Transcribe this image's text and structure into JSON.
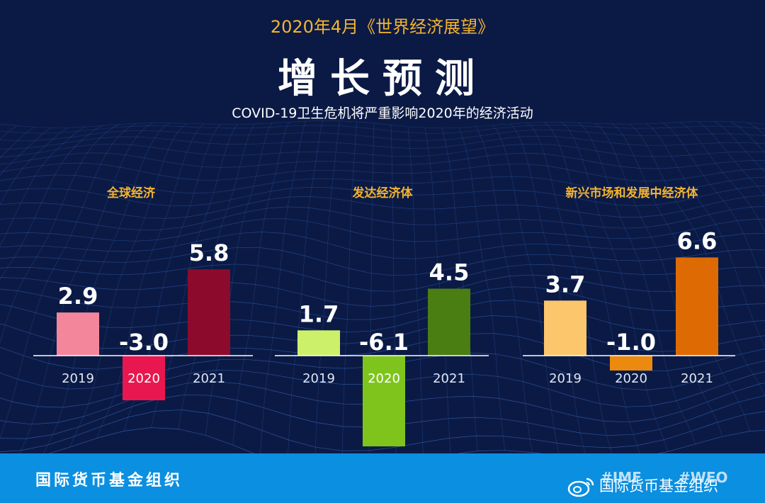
{
  "header": {
    "kicker": "2020年4月《世界经济展望》",
    "title": "增长预测",
    "subtitle": "COVID-19卫生危机将严重影响2020年的经济活动"
  },
  "colors": {
    "background": "#0b1a45",
    "title_yellow": "#f4b42f",
    "footer_blue": "#0b8fe0"
  },
  "chart_data": [
    {
      "type": "bar",
      "title": "全球经济",
      "categories": [
        "2019",
        "2020",
        "2021"
      ],
      "values": [
        2.9,
        -3.0,
        5.8
      ],
      "value_labels": [
        "2.9",
        "-3.0",
        "5.8"
      ],
      "colors": [
        "#f4869b",
        "#e8174f",
        "#8c0b2c"
      ],
      "highlight_category": "2020"
    },
    {
      "type": "bar",
      "title": "发达经济体",
      "categories": [
        "2019",
        "2020",
        "2021"
      ],
      "values": [
        1.7,
        -6.1,
        4.5
      ],
      "value_labels": [
        "1.7",
        "-6.1",
        "4.5"
      ],
      "colors": [
        "#cdf06a",
        "#7ec41d",
        "#4a7d12"
      ],
      "highlight_category": "2020"
    },
    {
      "type": "bar",
      "title": "新兴市场和发展中经济体",
      "categories": [
        "2019",
        "2020",
        "2021"
      ],
      "values": [
        3.7,
        -1.0,
        6.6
      ],
      "value_labels": [
        "3.7",
        "-1.0",
        "6.6"
      ],
      "colors": [
        "#fbc66c",
        "#eb8a0e",
        "#de6a04"
      ],
      "highlight_category": ""
    }
  ],
  "footer": {
    "org": "国际货币基金组织",
    "hashtag_1": "#IMF",
    "hashtag_2": "#WEO",
    "watermark": "国际货币基金组织",
    "watermark_icon": "weibo-icon"
  }
}
